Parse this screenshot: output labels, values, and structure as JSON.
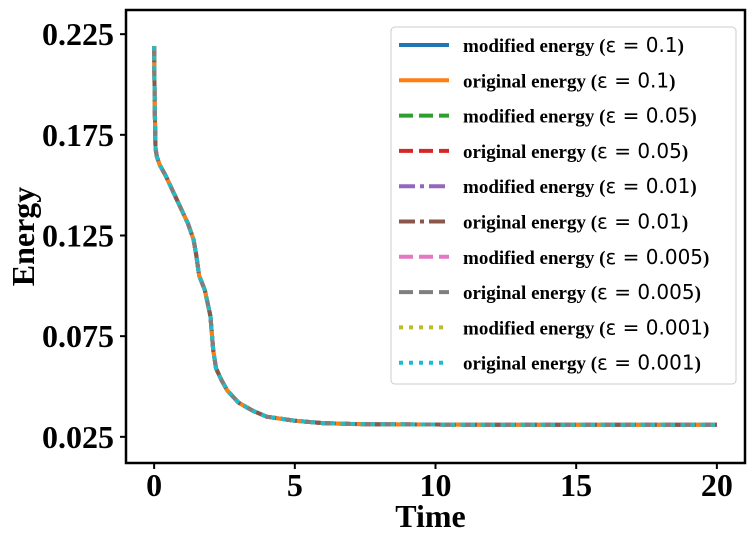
{
  "chart_data": {
    "type": "line",
    "title": "",
    "xlabel": "Time",
    "ylabel": "Energy",
    "xlim": [
      -1,
      21
    ],
    "ylim": [
      0.012,
      0.237
    ],
    "xticks": [
      0,
      5,
      10,
      15,
      20
    ],
    "xtick_labels": [
      "0",
      "5",
      "10",
      "15",
      "20"
    ],
    "yticks": [
      0.025,
      0.075,
      0.125,
      0.175,
      0.225
    ],
    "ytick_labels": [
      "0.025",
      "0.075",
      "0.125",
      "0.175",
      "0.225"
    ],
    "grid": false,
    "legend_position": "top-right",
    "x": [
      0,
      0.02,
      0.05,
      0.1,
      0.2,
      0.4,
      0.6,
      0.8,
      1.0,
      1.2,
      1.4,
      1.5,
      1.6,
      1.8,
      2.0,
      2.1,
      2.2,
      2.4,
      2.6,
      2.8,
      3.0,
      3.5,
      4.0,
      4.5,
      5.0,
      6.0,
      7.0,
      8.0,
      10.0,
      12.0,
      15.0,
      18.0,
      20.0
    ],
    "series": [
      {
        "name_prefix": "modified energy",
        "epsilon": "0.1",
        "color": "#1f77b4",
        "dash": "solid",
        "values": [
          0.219,
          0.19,
          0.168,
          0.164,
          0.16,
          0.155,
          0.149,
          0.143,
          0.137,
          0.131,
          0.123,
          0.115,
          0.105,
          0.098,
          0.085,
          0.068,
          0.059,
          0.053,
          0.048,
          0.045,
          0.042,
          0.038,
          0.035,
          0.034,
          0.033,
          0.0318,
          0.0314,
          0.0312,
          0.0311,
          0.031,
          0.031,
          0.031,
          0.031
        ]
      },
      {
        "name_prefix": "original energy",
        "epsilon": "0.1",
        "color": "#ff7f0e",
        "dash": "solid",
        "values": [
          0.219,
          0.19,
          0.168,
          0.164,
          0.16,
          0.155,
          0.149,
          0.143,
          0.137,
          0.131,
          0.123,
          0.115,
          0.105,
          0.098,
          0.085,
          0.068,
          0.059,
          0.053,
          0.048,
          0.045,
          0.042,
          0.038,
          0.035,
          0.034,
          0.033,
          0.0318,
          0.0314,
          0.0312,
          0.0311,
          0.031,
          0.031,
          0.031,
          0.031
        ]
      },
      {
        "name_prefix": "modified energy",
        "epsilon": "0.05",
        "color": "#2ca02c",
        "dash": "dashed",
        "values": [
          0.219,
          0.19,
          0.168,
          0.164,
          0.16,
          0.155,
          0.149,
          0.143,
          0.137,
          0.131,
          0.123,
          0.115,
          0.105,
          0.098,
          0.085,
          0.068,
          0.059,
          0.053,
          0.048,
          0.045,
          0.042,
          0.038,
          0.035,
          0.034,
          0.033,
          0.0318,
          0.0314,
          0.0312,
          0.0311,
          0.031,
          0.031,
          0.031,
          0.031
        ]
      },
      {
        "name_prefix": "original energy",
        "epsilon": "0.05",
        "color": "#d62728",
        "dash": "dashed",
        "values": [
          0.219,
          0.19,
          0.168,
          0.164,
          0.16,
          0.155,
          0.149,
          0.143,
          0.137,
          0.131,
          0.123,
          0.115,
          0.105,
          0.098,
          0.085,
          0.068,
          0.059,
          0.053,
          0.048,
          0.045,
          0.042,
          0.038,
          0.035,
          0.034,
          0.033,
          0.0318,
          0.0314,
          0.0312,
          0.0311,
          0.031,
          0.031,
          0.031,
          0.031
        ]
      },
      {
        "name_prefix": "modified energy",
        "epsilon": "0.01",
        "color": "#9467bd",
        "dash": "dashdot",
        "values": [
          0.219,
          0.19,
          0.168,
          0.164,
          0.16,
          0.155,
          0.149,
          0.143,
          0.137,
          0.131,
          0.123,
          0.115,
          0.105,
          0.098,
          0.085,
          0.068,
          0.059,
          0.053,
          0.048,
          0.045,
          0.042,
          0.038,
          0.035,
          0.034,
          0.033,
          0.0318,
          0.0314,
          0.0312,
          0.0311,
          0.031,
          0.031,
          0.031,
          0.031
        ]
      },
      {
        "name_prefix": "original energy",
        "epsilon": "0.01",
        "color": "#8c564b",
        "dash": "dashdot",
        "values": [
          0.219,
          0.19,
          0.168,
          0.164,
          0.16,
          0.155,
          0.149,
          0.143,
          0.137,
          0.131,
          0.123,
          0.115,
          0.105,
          0.098,
          0.085,
          0.068,
          0.059,
          0.053,
          0.048,
          0.045,
          0.042,
          0.038,
          0.035,
          0.034,
          0.033,
          0.0318,
          0.0314,
          0.0312,
          0.0311,
          0.031,
          0.031,
          0.031,
          0.031
        ]
      },
      {
        "name_prefix": "modified energy",
        "epsilon": "0.005",
        "color": "#e377c2",
        "dash": "dashed",
        "values": [
          0.219,
          0.19,
          0.168,
          0.164,
          0.16,
          0.155,
          0.149,
          0.143,
          0.137,
          0.131,
          0.123,
          0.115,
          0.105,
          0.098,
          0.085,
          0.068,
          0.059,
          0.053,
          0.048,
          0.045,
          0.042,
          0.038,
          0.035,
          0.034,
          0.033,
          0.0318,
          0.0314,
          0.0312,
          0.0311,
          0.031,
          0.031,
          0.031,
          0.031
        ]
      },
      {
        "name_prefix": "original energy",
        "epsilon": "0.005",
        "color": "#7f7f7f",
        "dash": "dashed",
        "values": [
          0.219,
          0.19,
          0.168,
          0.164,
          0.16,
          0.155,
          0.149,
          0.143,
          0.137,
          0.131,
          0.123,
          0.115,
          0.105,
          0.098,
          0.085,
          0.068,
          0.059,
          0.053,
          0.048,
          0.045,
          0.042,
          0.038,
          0.035,
          0.034,
          0.033,
          0.0318,
          0.0314,
          0.0312,
          0.0311,
          0.031,
          0.031,
          0.031,
          0.031
        ]
      },
      {
        "name_prefix": "modified energy",
        "epsilon": "0.001",
        "color": "#bcbd22",
        "dash": "dotted",
        "values": [
          0.219,
          0.19,
          0.168,
          0.164,
          0.16,
          0.155,
          0.149,
          0.143,
          0.137,
          0.131,
          0.123,
          0.115,
          0.105,
          0.098,
          0.085,
          0.068,
          0.059,
          0.053,
          0.048,
          0.045,
          0.042,
          0.038,
          0.035,
          0.034,
          0.033,
          0.0318,
          0.0314,
          0.0312,
          0.0311,
          0.031,
          0.031,
          0.031,
          0.031
        ]
      },
      {
        "name_prefix": "original energy",
        "epsilon": "0.001",
        "color": "#17becf",
        "dash": "dotted",
        "values": [
          0.219,
          0.19,
          0.168,
          0.164,
          0.16,
          0.155,
          0.149,
          0.143,
          0.137,
          0.131,
          0.123,
          0.115,
          0.105,
          0.098,
          0.085,
          0.068,
          0.059,
          0.053,
          0.048,
          0.045,
          0.042,
          0.038,
          0.035,
          0.034,
          0.033,
          0.0318,
          0.0314,
          0.0312,
          0.0311,
          0.031,
          0.031,
          0.031,
          0.031
        ]
      }
    ]
  }
}
